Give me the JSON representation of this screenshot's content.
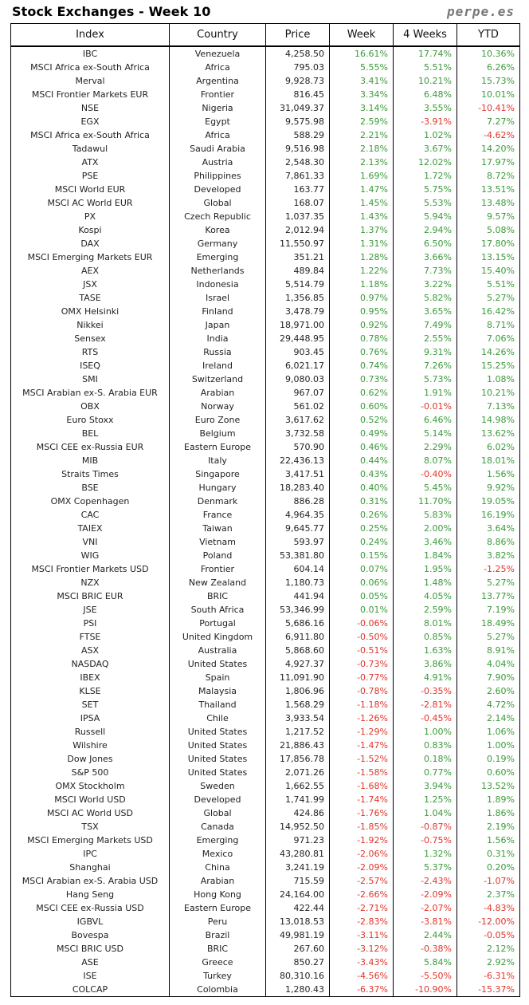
{
  "title": "Stock Exchanges - Week 10",
  "brand": "perpe.es",
  "colors": {
    "positive": "#3a9a3a",
    "negative": "#e0352b"
  },
  "headers": [
    "Index",
    "Country",
    "Price",
    "Week",
    "4 Weeks",
    "YTD"
  ],
  "rows": [
    [
      "IBC",
      "Venezuela",
      "4,258.50",
      "16.61%",
      "17.74%",
      "10.36%"
    ],
    [
      "MSCI Africa ex-South Africa",
      "Africa",
      "795.03",
      "5.55%",
      "5.51%",
      "6.26%"
    ],
    [
      "Merval",
      "Argentina",
      "9,928.73",
      "3.41%",
      "10.21%",
      "15.73%"
    ],
    [
      "MSCI Frontier Markets EUR",
      "Frontier",
      "816.45",
      "3.34%",
      "6.48%",
      "10.01%"
    ],
    [
      "NSE",
      "Nigeria",
      "31,049.37",
      "3.14%",
      "3.55%",
      "-10.41%"
    ],
    [
      "EGX",
      "Egypt",
      "9,575.98",
      "2.59%",
      "-3.91%",
      "7.27%"
    ],
    [
      "MSCI Africa ex-South Africa",
      "Africa",
      "588.29",
      "2.21%",
      "1.02%",
      "-4.62%"
    ],
    [
      "Tadawul",
      "Saudi Arabia",
      "9,516.98",
      "2.18%",
      "3.67%",
      "14.20%"
    ],
    [
      "ATX",
      "Austria",
      "2,548.30",
      "2.13%",
      "12.02%",
      "17.97%"
    ],
    [
      "PSE",
      "Philippines",
      "7,861.33",
      "1.69%",
      "1.72%",
      "8.72%"
    ],
    [
      "MSCI World EUR",
      "Developed",
      "163.77",
      "1.47%",
      "5.75%",
      "13.51%"
    ],
    [
      "MSCI AC World EUR",
      "Global",
      "168.07",
      "1.45%",
      "5.53%",
      "13.48%"
    ],
    [
      "PX",
      "Czech Republic",
      "1,037.35",
      "1.43%",
      "5.94%",
      "9.57%"
    ],
    [
      "Kospi",
      "Korea",
      "2,012.94",
      "1.37%",
      "2.94%",
      "5.08%"
    ],
    [
      "DAX",
      "Germany",
      "11,550.97",
      "1.31%",
      "6.50%",
      "17.80%"
    ],
    [
      "MSCI Emerging Markets EUR",
      "Emerging",
      "351.21",
      "1.28%",
      "3.66%",
      "13.15%"
    ],
    [
      "AEX",
      "Netherlands",
      "489.84",
      "1.22%",
      "7.73%",
      "15.40%"
    ],
    [
      "JSX",
      "Indonesia",
      "5,514.79",
      "1.18%",
      "3.22%",
      "5.51%"
    ],
    [
      "TASE",
      "Israel",
      "1,356.85",
      "0.97%",
      "5.82%",
      "5.27%"
    ],
    [
      "OMX Helsinki",
      "Finland",
      "3,478.79",
      "0.95%",
      "3.65%",
      "16.42%"
    ],
    [
      "Nikkei",
      "Japan",
      "18,971.00",
      "0.92%",
      "7.49%",
      "8.71%"
    ],
    [
      "Sensex",
      "India",
      "29,448.95",
      "0.78%",
      "2.55%",
      "7.06%"
    ],
    [
      "RTS",
      "Russia",
      "903.45",
      "0.76%",
      "9.31%",
      "14.26%"
    ],
    [
      "ISEQ",
      "Ireland",
      "6,021.17",
      "0.74%",
      "7.26%",
      "15.25%"
    ],
    [
      "SMI",
      "Switzerland",
      "9,080.03",
      "0.73%",
      "5.73%",
      "1.08%"
    ],
    [
      "MSCI Arabian ex-S. Arabia EUR",
      "Arabian",
      "967.07",
      "0.62%",
      "1.91%",
      "10.21%"
    ],
    [
      "OBX",
      "Norway",
      "561.02",
      "0.60%",
      "-0.01%",
      "7.13%"
    ],
    [
      "Euro Stoxx",
      "Euro Zone",
      "3,617.62",
      "0.52%",
      "6.46%",
      "14.98%"
    ],
    [
      "BEL",
      "Belgium",
      "3,732.58",
      "0.49%",
      "5.14%",
      "13.62%"
    ],
    [
      "MSCI CEE ex-Russia EUR",
      "Eastern Europe",
      "570.90",
      "0.46%",
      "2.29%",
      "6.02%"
    ],
    [
      "MIB",
      "Italy",
      "22,436.13",
      "0.44%",
      "8.07%",
      "18.01%"
    ],
    [
      "Straits Times",
      "Singapore",
      "3,417.51",
      "0.43%",
      "-0.40%",
      "1.56%"
    ],
    [
      "BSE",
      "Hungary",
      "18,283.40",
      "0.40%",
      "5.45%",
      "9.92%"
    ],
    [
      "OMX Copenhagen",
      "Denmark",
      "886.28",
      "0.31%",
      "11.70%",
      "19.05%"
    ],
    [
      "CAC",
      "France",
      "4,964.35",
      "0.26%",
      "5.83%",
      "16.19%"
    ],
    [
      "TAIEX",
      "Taiwan",
      "9,645.77",
      "0.25%",
      "2.00%",
      "3.64%"
    ],
    [
      "VNI",
      "Vietnam",
      "593.97",
      "0.24%",
      "3.46%",
      "8.86%"
    ],
    [
      "WIG",
      "Poland",
      "53,381.80",
      "0.15%",
      "1.84%",
      "3.82%"
    ],
    [
      "MSCI Frontier Markets USD",
      "Frontier",
      "604.14",
      "0.07%",
      "1.95%",
      "-1.25%"
    ],
    [
      "NZX",
      "New Zealand",
      "1,180.73",
      "0.06%",
      "1.48%",
      "5.27%"
    ],
    [
      "MSCI BRIC EUR",
      "BRIC",
      "441.94",
      "0.05%",
      "4.05%",
      "13.77%"
    ],
    [
      "JSE",
      "South Africa",
      "53,346.99",
      "0.01%",
      "2.59%",
      "7.19%"
    ],
    [
      "PSI",
      "Portugal",
      "5,686.16",
      "-0.06%",
      "8.01%",
      "18.49%"
    ],
    [
      "FTSE",
      "United Kingdom",
      "6,911.80",
      "-0.50%",
      "0.85%",
      "5.27%"
    ],
    [
      "ASX",
      "Australia",
      "5,868.60",
      "-0.51%",
      "1.63%",
      "8.91%"
    ],
    [
      "NASDAQ",
      "United States",
      "4,927.37",
      "-0.73%",
      "3.86%",
      "4.04%"
    ],
    [
      "IBEX",
      "Spain",
      "11,091.90",
      "-0.77%",
      "4.91%",
      "7.90%"
    ],
    [
      "KLSE",
      "Malaysia",
      "1,806.96",
      "-0.78%",
      "-0.35%",
      "2.60%"
    ],
    [
      "SET",
      "Thailand",
      "1,568.29",
      "-1.18%",
      "-2.81%",
      "4.72%"
    ],
    [
      "IPSA",
      "Chile",
      "3,933.54",
      "-1.26%",
      "-0.45%",
      "2.14%"
    ],
    [
      "Russell",
      "United States",
      "1,217.52",
      "-1.29%",
      "1.00%",
      "1.06%"
    ],
    [
      "Wilshire",
      "United States",
      "21,886.43",
      "-1.47%",
      "0.83%",
      "1.00%"
    ],
    [
      "Dow Jones",
      "United States",
      "17,856.78",
      "-1.52%",
      "0.18%",
      "0.19%"
    ],
    [
      "S&P 500",
      "United States",
      "2,071.26",
      "-1.58%",
      "0.77%",
      "0.60%"
    ],
    [
      "OMX Stockholm",
      "Sweden",
      "1,662.55",
      "-1.68%",
      "3.94%",
      "13.52%"
    ],
    [
      "MSCI World USD",
      "Developed",
      "1,741.99",
      "-1.74%",
      "1.25%",
      "1.89%"
    ],
    [
      "MSCI AC World USD",
      "Global",
      "424.86",
      "-1.76%",
      "1.04%",
      "1.86%"
    ],
    [
      "TSX",
      "Canada",
      "14,952.50",
      "-1.85%",
      "-0.87%",
      "2.19%"
    ],
    [
      "MSCI Emerging Markets USD",
      "Emerging",
      "971.23",
      "-1.92%",
      "-0.75%",
      "1.56%"
    ],
    [
      "IPC",
      "Mexico",
      "43,280.81",
      "-2.06%",
      "1.32%",
      "0.31%"
    ],
    [
      "Shanghai",
      "China",
      "3,241.19",
      "-2.09%",
      "5.37%",
      "0.20%"
    ],
    [
      "MSCI Arabian ex-S. Arabia USD",
      "Arabian",
      "715.59",
      "-2.57%",
      "-2.43%",
      "-1.07%"
    ],
    [
      "Hang Seng",
      "Hong Kong",
      "24,164.00",
      "-2.66%",
      "-2.09%",
      "2.37%"
    ],
    [
      "MSCI CEE ex-Russia USD",
      "Eastern Europe",
      "422.44",
      "-2.71%",
      "-2.07%",
      "-4.83%"
    ],
    [
      "IGBVL",
      "Peru",
      "13,018.53",
      "-2.83%",
      "-3.81%",
      "-12.00%"
    ],
    [
      "Bovespa",
      "Brazil",
      "49,981.19",
      "-3.11%",
      "2.44%",
      "-0.05%"
    ],
    [
      "MSCI BRIC USD",
      "BRIC",
      "267.60",
      "-3.12%",
      "-0.38%",
      "2.12%"
    ],
    [
      "ASE",
      "Greece",
      "850.27",
      "-3.43%",
      "5.84%",
      "2.92%"
    ],
    [
      "ISE",
      "Turkey",
      "80,310.16",
      "-4.56%",
      "-5.50%",
      "-6.31%"
    ],
    [
      "COLCAP",
      "Colombia",
      "1,280.43",
      "-6.37%",
      "-10.90%",
      "-15.37%"
    ]
  ]
}
